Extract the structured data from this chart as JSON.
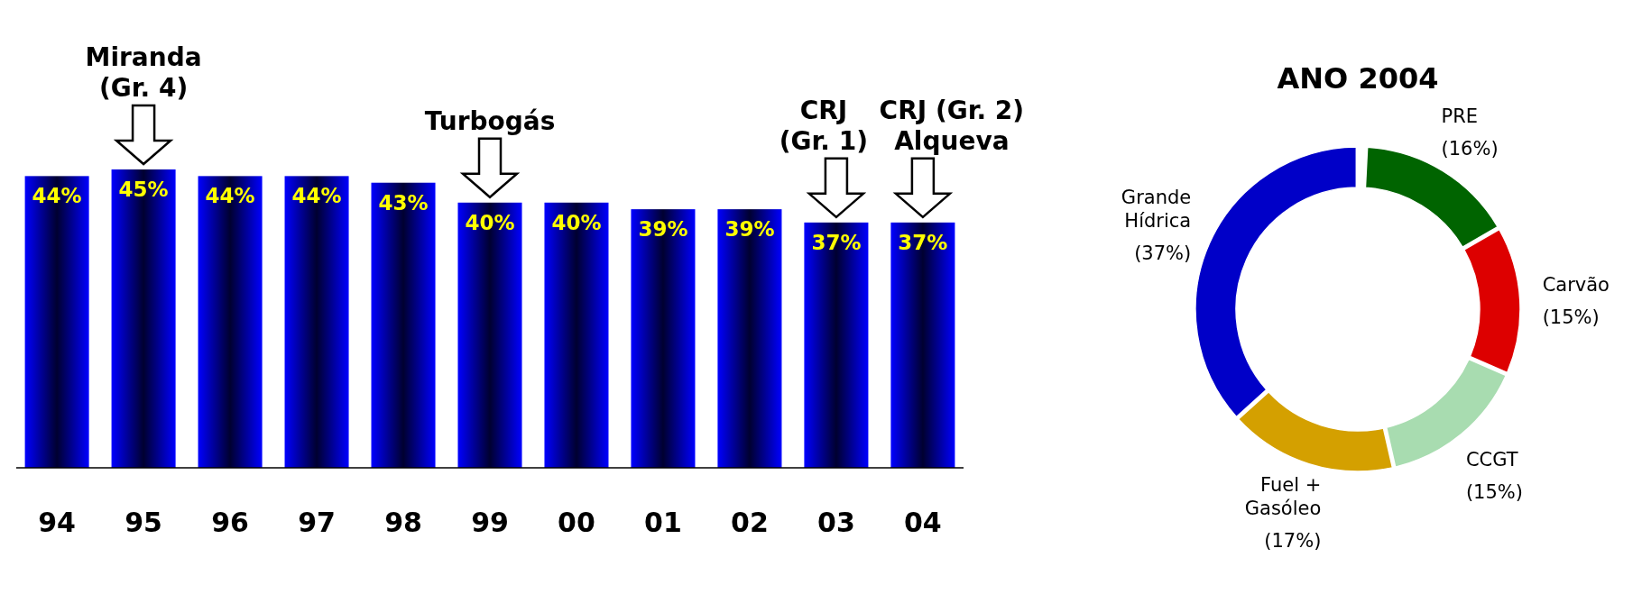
{
  "chart_data": [
    {
      "type": "bar",
      "categories": [
        "94",
        "95",
        "96",
        "97",
        "98",
        "99",
        "00",
        "01",
        "02",
        "03",
        "04"
      ],
      "values": [
        44,
        45,
        44,
        44,
        43,
        40,
        40,
        39,
        39,
        37,
        37
      ],
      "value_labels": [
        "44%",
        "45%",
        "44%",
        "44%",
        "43%",
        "40%",
        "40%",
        "39%",
        "39%",
        "37%",
        "37%"
      ],
      "color": "#0000ff",
      "annotations": [
        {
          "text": "Miranda\n(Gr. 4)",
          "x": "95",
          "y": 45
        },
        {
          "text": "Turbogás",
          "x": "99",
          "y": 40
        },
        {
          "text": "CRJ\n(Gr. 1)",
          "x": "03",
          "y": 37
        },
        {
          "text": "CRJ (Gr. 2)\nAlqueva",
          "x": "04",
          "y": 37
        }
      ]
    },
    {
      "type": "donut",
      "title": "ANO 2004",
      "categories": [
        "PRE",
        "Carvão",
        "CCGT",
        "Fuel + Gasóleo",
        "Grande Hídrica"
      ],
      "values": [
        16,
        15,
        15,
        17,
        37
      ],
      "value_labels": [
        "(16%)",
        "(15%)",
        "(15%)",
        "(17%)",
        "(37%)"
      ],
      "colors": [
        "#006400",
        "#dd0000",
        "#a8dcb0",
        "#d4a000",
        "#0000c8"
      ]
    }
  ]
}
